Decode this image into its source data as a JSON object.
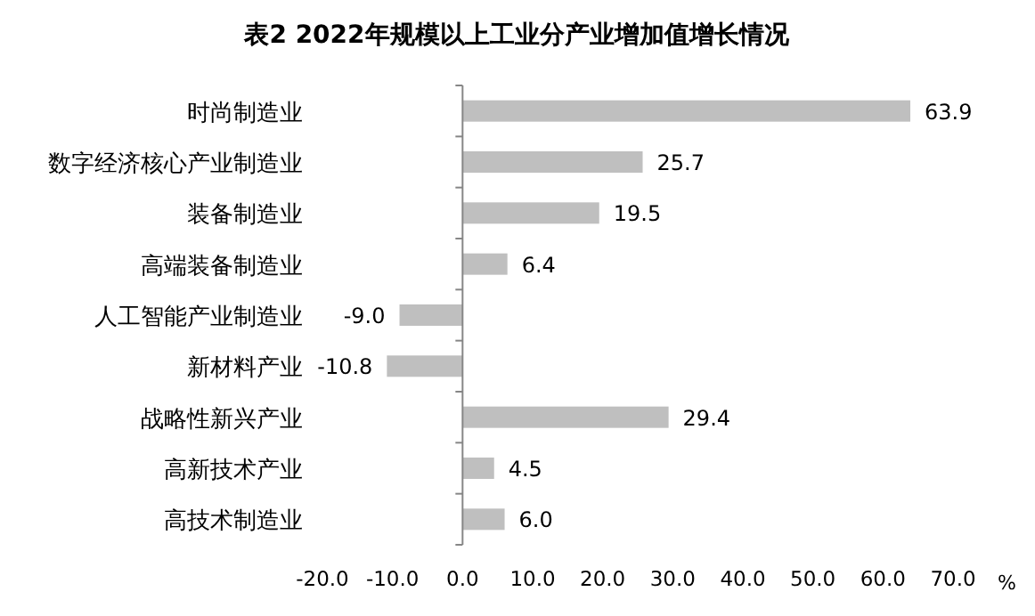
{
  "chart_data": {
    "type": "bar",
    "orientation": "horizontal",
    "title": "**表2  2022年规模以上工业分产业增加值增长情况**",
    "xlabel": "%",
    "categories": [
      "时尚制造业",
      "数字经济核心产业制造业",
      "装备制造业",
      "高端装备制造业",
      "人工智能产业制造业",
      "新材料产业",
      "战略性新兴产业",
      "高新技术产业",
      "高技术制造业"
    ],
    "values": [
      63.9,
      25.7,
      19.5,
      6.4,
      -9.0,
      -10.8,
      29.4,
      4.5,
      6.0
    ],
    "value_labels": [
      "63.9",
      "25.7",
      "19.5",
      "6.4",
      "-9.0",
      "-10.8",
      "29.4",
      "4.5",
      "6.0"
    ],
    "color": "#bfbfbf",
    "xlim": [
      -20,
      70
    ],
    "xticks": [
      {
        "value": -20,
        "label": "-20.0"
      },
      {
        "value": -10,
        "label": "-10.0"
      },
      {
        "value": 0,
        "label": "0.0"
      },
      {
        "value": 10,
        "label": "10.0"
      },
      {
        "value": 20,
        "label": "20.0"
      },
      {
        "value": 30,
        "label": "30.0"
      },
      {
        "value": 40,
        "label": "40.0"
      },
      {
        "value": 50,
        "label": "50.0"
      },
      {
        "value": 60,
        "label": "60.0"
      },
      {
        "value": 70,
        "label": "70.0"
      }
    ]
  }
}
